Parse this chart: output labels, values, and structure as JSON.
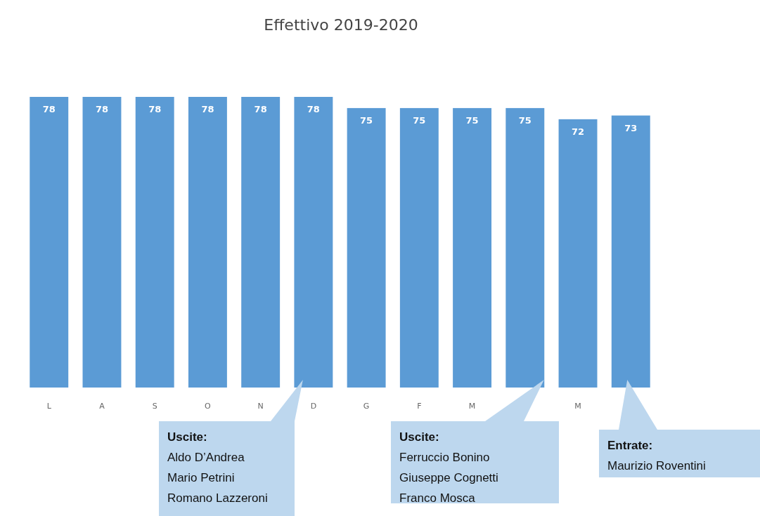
{
  "chart_data": {
    "type": "bar",
    "title": "Effettivo 2019-2020",
    "categories": [
      "L",
      "A",
      "S",
      "O",
      "N",
      "D",
      "G",
      "F",
      "M",
      null,
      "M",
      null
    ],
    "values": [
      78,
      78,
      78,
      78,
      78,
      78,
      75,
      75,
      75,
      75,
      72,
      73
    ],
    "color": "#5b9bd5",
    "data_labels": true,
    "annotations": [
      "Uscite:\nAldo D’Andrea\nMario Petrini\nRomano Lazzeroni",
      "Uscite:\nFerruccio Bonino\nGiuseppe Cognetti\nFranco Mosca",
      "Entrate:\nMaurizio Roventini"
    ]
  }
}
